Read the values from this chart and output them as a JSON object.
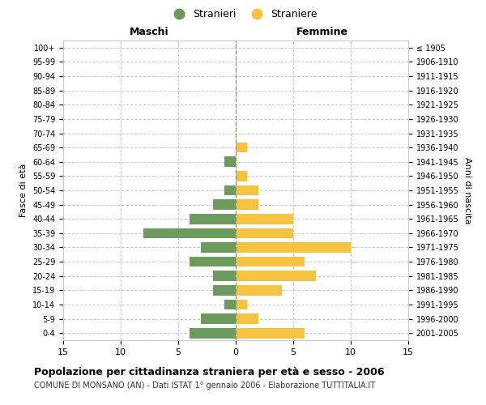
{
  "age_groups": [
    "100+",
    "95-99",
    "90-94",
    "85-89",
    "80-84",
    "75-79",
    "70-74",
    "65-69",
    "60-64",
    "55-59",
    "50-54",
    "45-49",
    "40-44",
    "35-39",
    "30-34",
    "25-29",
    "20-24",
    "15-19",
    "10-14",
    "5-9",
    "0-4"
  ],
  "birth_years": [
    "≤ 1905",
    "1906-1910",
    "1911-1915",
    "1916-1920",
    "1921-1925",
    "1926-1930",
    "1931-1935",
    "1936-1940",
    "1941-1945",
    "1946-1950",
    "1951-1955",
    "1956-1960",
    "1961-1965",
    "1966-1970",
    "1971-1975",
    "1976-1980",
    "1981-1985",
    "1986-1990",
    "1991-1995",
    "1996-2000",
    "2001-2005"
  ],
  "maschi": [
    0,
    0,
    0,
    0,
    0,
    0,
    0,
    0,
    1,
    0,
    1,
    2,
    4,
    8,
    3,
    4,
    2,
    2,
    1,
    3,
    4
  ],
  "femmine": [
    0,
    0,
    0,
    0,
    0,
    0,
    0,
    1,
    0,
    1,
    2,
    2,
    5,
    5,
    10,
    6,
    7,
    4,
    1,
    2,
    6
  ],
  "color_maschi": "#6d9b5e",
  "color_femmine": "#f5c242",
  "title": "Popolazione per cittadinanza straniera per età e sesso - 2006",
  "subtitle": "COMUNE DI MONSANO (AN) - Dati ISTAT 1° gennaio 2006 - Elaborazione TUTTITALIA.IT",
  "label_maschi": "Maschi",
  "label_femmine": "Femmine",
  "ylabel_left": "Fasce di età",
  "ylabel_right": "Anni di nascita",
  "legend_maschi": "Stranieri",
  "legend_femmine": "Straniere",
  "xlim": 15,
  "background_color": "#ffffff",
  "grid_color": "#cccccc",
  "spine_color": "#cccccc"
}
